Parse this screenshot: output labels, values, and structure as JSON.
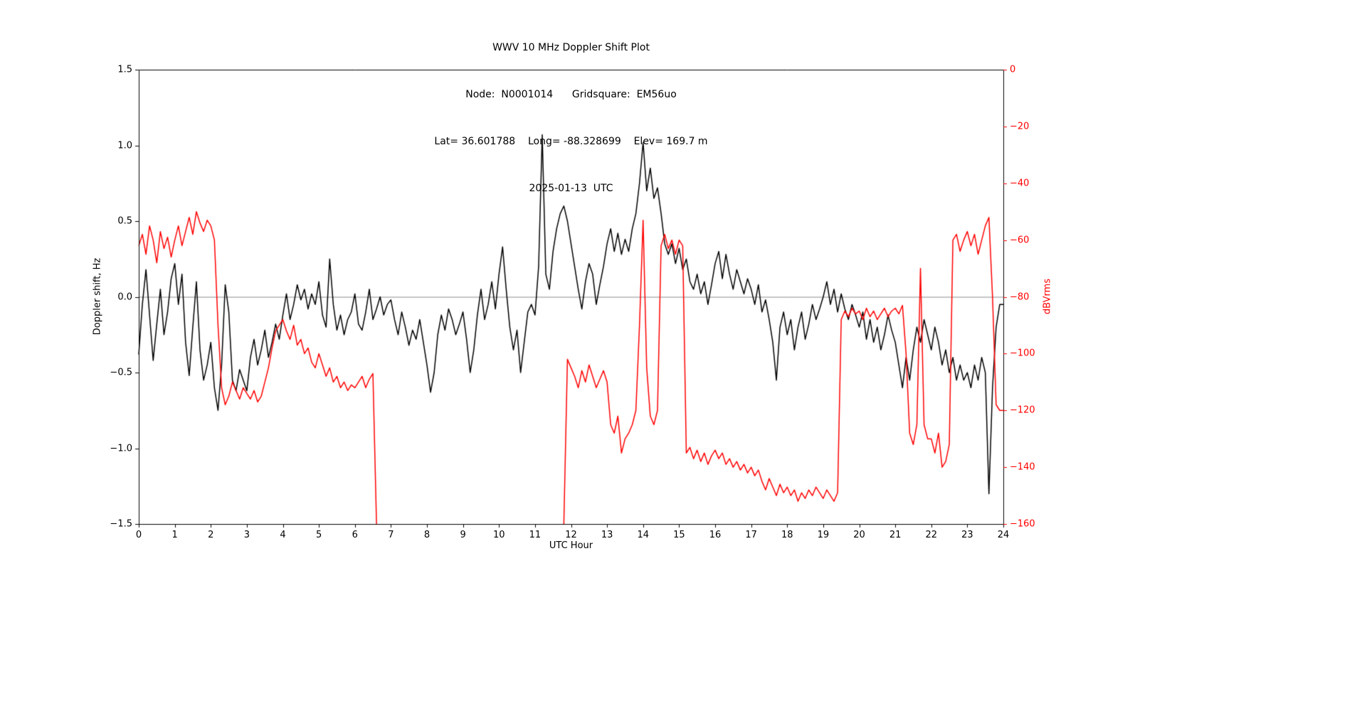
{
  "header": {
    "title": "WWV 10 MHz Doppler Shift Plot",
    "node_line": "Node:  N0001014      Gridsquare:  EM56uo",
    "location_line": "Lat= 36.601788    Long= -88.328699    Elev= 169.7 m",
    "date_line": "2025-01-13  UTC"
  },
  "chart_data": {
    "type": "line",
    "title": "WWV 10 MHz Doppler Shift Plot",
    "xlabel": "UTC Hour",
    "x_range": [
      0,
      24
    ],
    "x_ticks": [
      0,
      1,
      2,
      3,
      4,
      5,
      6,
      7,
      8,
      9,
      10,
      11,
      12,
      13,
      14,
      15,
      16,
      17,
      18,
      19,
      20,
      21,
      22,
      23,
      24
    ],
    "x_tick_labels": [
      "0",
      "1",
      "2",
      "3",
      "4",
      "5",
      "6",
      "7",
      "8",
      "9",
      "10",
      "11",
      "12",
      "13",
      "14",
      "15",
      "16",
      "17",
      "18",
      "19",
      "20",
      "21",
      "22",
      "23",
      "24"
    ],
    "grid": false,
    "legend": "none",
    "left_y": {
      "label": "Doppler shift, Hz",
      "range": [
        -1.5,
        1.5
      ],
      "ticks": [
        1.5,
        1.0,
        0.5,
        0.0,
        -0.5,
        -1.0,
        -1.5
      ],
      "tick_labels": [
        "1.5",
        "1.0",
        "0.5",
        "0.0",
        "−0.5",
        "−1.0",
        "−1.5"
      ],
      "color": "#000000"
    },
    "right_y": {
      "label": "dBVrms",
      "range": [
        -160,
        0
      ],
      "ticks": [
        0,
        -20,
        -40,
        -60,
        -80,
        -100,
        -120,
        -140,
        -160
      ],
      "tick_labels": [
        "0",
        "−20",
        "−40",
        "−60",
        "−80",
        "−100",
        "−120",
        "−140",
        "−160"
      ],
      "color": "#ff0000"
    },
    "zero_line": {
      "y": 0.0,
      "color": "#8c8c8c"
    },
    "series": [
      {
        "name": "Doppler shift",
        "axis": "left",
        "color": "#000000",
        "x_start": 0,
        "x_step": 0.1,
        "values": [
          -0.38,
          -0.05,
          0.18,
          -0.12,
          -0.42,
          -0.18,
          0.05,
          -0.25,
          -0.1,
          0.12,
          0.22,
          -0.05,
          0.15,
          -0.3,
          -0.52,
          -0.2,
          0.1,
          -0.35,
          -0.55,
          -0.45,
          -0.3,
          -0.6,
          -0.75,
          -0.45,
          0.08,
          -0.1,
          -0.55,
          -0.62,
          -0.48,
          -0.55,
          -0.62,
          -0.4,
          -0.28,
          -0.45,
          -0.35,
          -0.22,
          -0.4,
          -0.3,
          -0.18,
          -0.28,
          -0.12,
          0.02,
          -0.15,
          -0.05,
          0.08,
          -0.02,
          0.05,
          -0.08,
          0.02,
          -0.05,
          0.1,
          -0.12,
          -0.2,
          0.25,
          -0.05,
          -0.22,
          -0.12,
          -0.25,
          -0.15,
          -0.1,
          0.02,
          -0.18,
          -0.22,
          -0.1,
          0.05,
          -0.15,
          -0.08,
          0.0,
          -0.12,
          -0.05,
          -0.02,
          -0.15,
          -0.25,
          -0.1,
          -0.2,
          -0.32,
          -0.22,
          -0.28,
          -0.15,
          -0.3,
          -0.45,
          -0.63,
          -0.5,
          -0.25,
          -0.12,
          -0.22,
          -0.08,
          -0.15,
          -0.25,
          -0.18,
          -0.1,
          -0.28,
          -0.5,
          -0.35,
          -0.12,
          0.05,
          -0.15,
          -0.05,
          0.1,
          -0.08,
          0.15,
          0.33,
          0.05,
          -0.2,
          -0.35,
          -0.22,
          -0.5,
          -0.3,
          -0.1,
          -0.05,
          -0.12,
          0.2,
          1.07,
          0.15,
          0.05,
          0.3,
          0.45,
          0.55,
          0.6,
          0.5,
          0.35,
          0.2,
          0.05,
          -0.08,
          0.1,
          0.22,
          0.15,
          -0.05,
          0.08,
          0.2,
          0.35,
          0.45,
          0.3,
          0.42,
          0.28,
          0.38,
          0.3,
          0.45,
          0.55,
          0.75,
          1.02,
          0.7,
          0.85,
          0.65,
          0.72,
          0.55,
          0.35,
          0.28,
          0.35,
          0.22,
          0.32,
          0.18,
          0.25,
          0.1,
          0.05,
          0.15,
          0.02,
          0.1,
          -0.05,
          0.08,
          0.22,
          0.3,
          0.12,
          0.28,
          0.15,
          0.05,
          0.18,
          0.1,
          0.02,
          0.12,
          0.05,
          -0.05,
          0.08,
          -0.1,
          -0.02,
          -0.15,
          -0.3,
          -0.55,
          -0.2,
          -0.1,
          -0.25,
          -0.15,
          -0.35,
          -0.2,
          -0.1,
          -0.28,
          -0.18,
          -0.05,
          -0.15,
          -0.08,
          0.0,
          0.1,
          -0.05,
          0.05,
          -0.1,
          0.02,
          -0.08,
          -0.15,
          -0.05,
          -0.12,
          -0.2,
          -0.1,
          -0.28,
          -0.15,
          -0.3,
          -0.2,
          -0.35,
          -0.25,
          -0.12,
          -0.22,
          -0.3,
          -0.45,
          -0.6,
          -0.4,
          -0.55,
          -0.35,
          -0.2,
          -0.3,
          -0.15,
          -0.25,
          -0.35,
          -0.2,
          -0.3,
          -0.45,
          -0.35,
          -0.5,
          -0.4,
          -0.55,
          -0.45,
          -0.55,
          -0.5,
          -0.6,
          -0.45,
          -0.55,
          -0.4,
          -0.5,
          -1.3,
          -0.6,
          -0.2,
          -0.05,
          -0.05
        ]
      },
      {
        "name": "dBVrms",
        "axis": "right",
        "color": "#ff0000",
        "x_start": 0,
        "x_step": 0.1,
        "values": [
          -62,
          -58,
          -65,
          -55,
          -60,
          -68,
          -57,
          -63,
          -59,
          -66,
          -60,
          -55,
          -62,
          -57,
          -52,
          -58,
          -50,
          -54,
          -57,
          -53,
          -55,
          -60,
          -90,
          -112,
          -118,
          -115,
          -110,
          -113,
          -116,
          -112,
          -114,
          -116,
          -113,
          -117,
          -115,
          -110,
          -105,
          -98,
          -92,
          -90,
          -88,
          -92,
          -95,
          -90,
          -97,
          -95,
          -100,
          -98,
          -103,
          -105,
          -100,
          -104,
          -108,
          -105,
          -110,
          -108,
          -112,
          -110,
          -113,
          -111,
          -112,
          -110,
          -108,
          -112,
          -109,
          -107,
          -160,
          null,
          null,
          null,
          null,
          null,
          null,
          null,
          null,
          null,
          null,
          null,
          null,
          null,
          null,
          null,
          null,
          null,
          null,
          null,
          null,
          null,
          null,
          null,
          null,
          null,
          null,
          null,
          null,
          null,
          null,
          null,
          null,
          null,
          null,
          null,
          null,
          null,
          null,
          null,
          null,
          null,
          null,
          null,
          null,
          null,
          null,
          null,
          null,
          null,
          null,
          null,
          -160,
          -102,
          -105,
          -108,
          -112,
          -106,
          -110,
          -104,
          -108,
          -112,
          -109,
          -106,
          -110,
          -125,
          -128,
          -122,
          -135,
          -130,
          -128,
          -125,
          -120,
          -90,
          -53,
          -105,
          -122,
          -125,
          -120,
          -62,
          -58,
          -63,
          -60,
          -65,
          -60,
          -62,
          -135,
          -133,
          -137,
          -134,
          -138,
          -135,
          -139,
          -136,
          -134,
          -137,
          -135,
          -139,
          -137,
          -140,
          -138,
          -141,
          -139,
          -142,
          -140,
          -143,
          -141,
          -145,
          -148,
          -144,
          -147,
          -150,
          -146,
          -149,
          -147,
          -150,
          -148,
          -152,
          -149,
          -151,
          -148,
          -150,
          -147,
          -149,
          -151,
          -148,
          -150,
          -152,
          -149,
          -88,
          -85,
          -87,
          -84,
          -86,
          -85,
          -88,
          -84,
          -87,
          -85,
          -88,
          -86,
          -84,
          -87,
          -85,
          -84,
          -86,
          -83,
          -100,
          -128,
          -132,
          -125,
          -70,
          -125,
          -130,
          -130,
          -135,
          -128,
          -140,
          -138,
          -132,
          -60,
          -58,
          -64,
          -60,
          -57,
          -62,
          -58,
          -65,
          -60,
          -55,
          -52,
          -80,
          -118,
          -120,
          -120
        ]
      }
    ]
  }
}
